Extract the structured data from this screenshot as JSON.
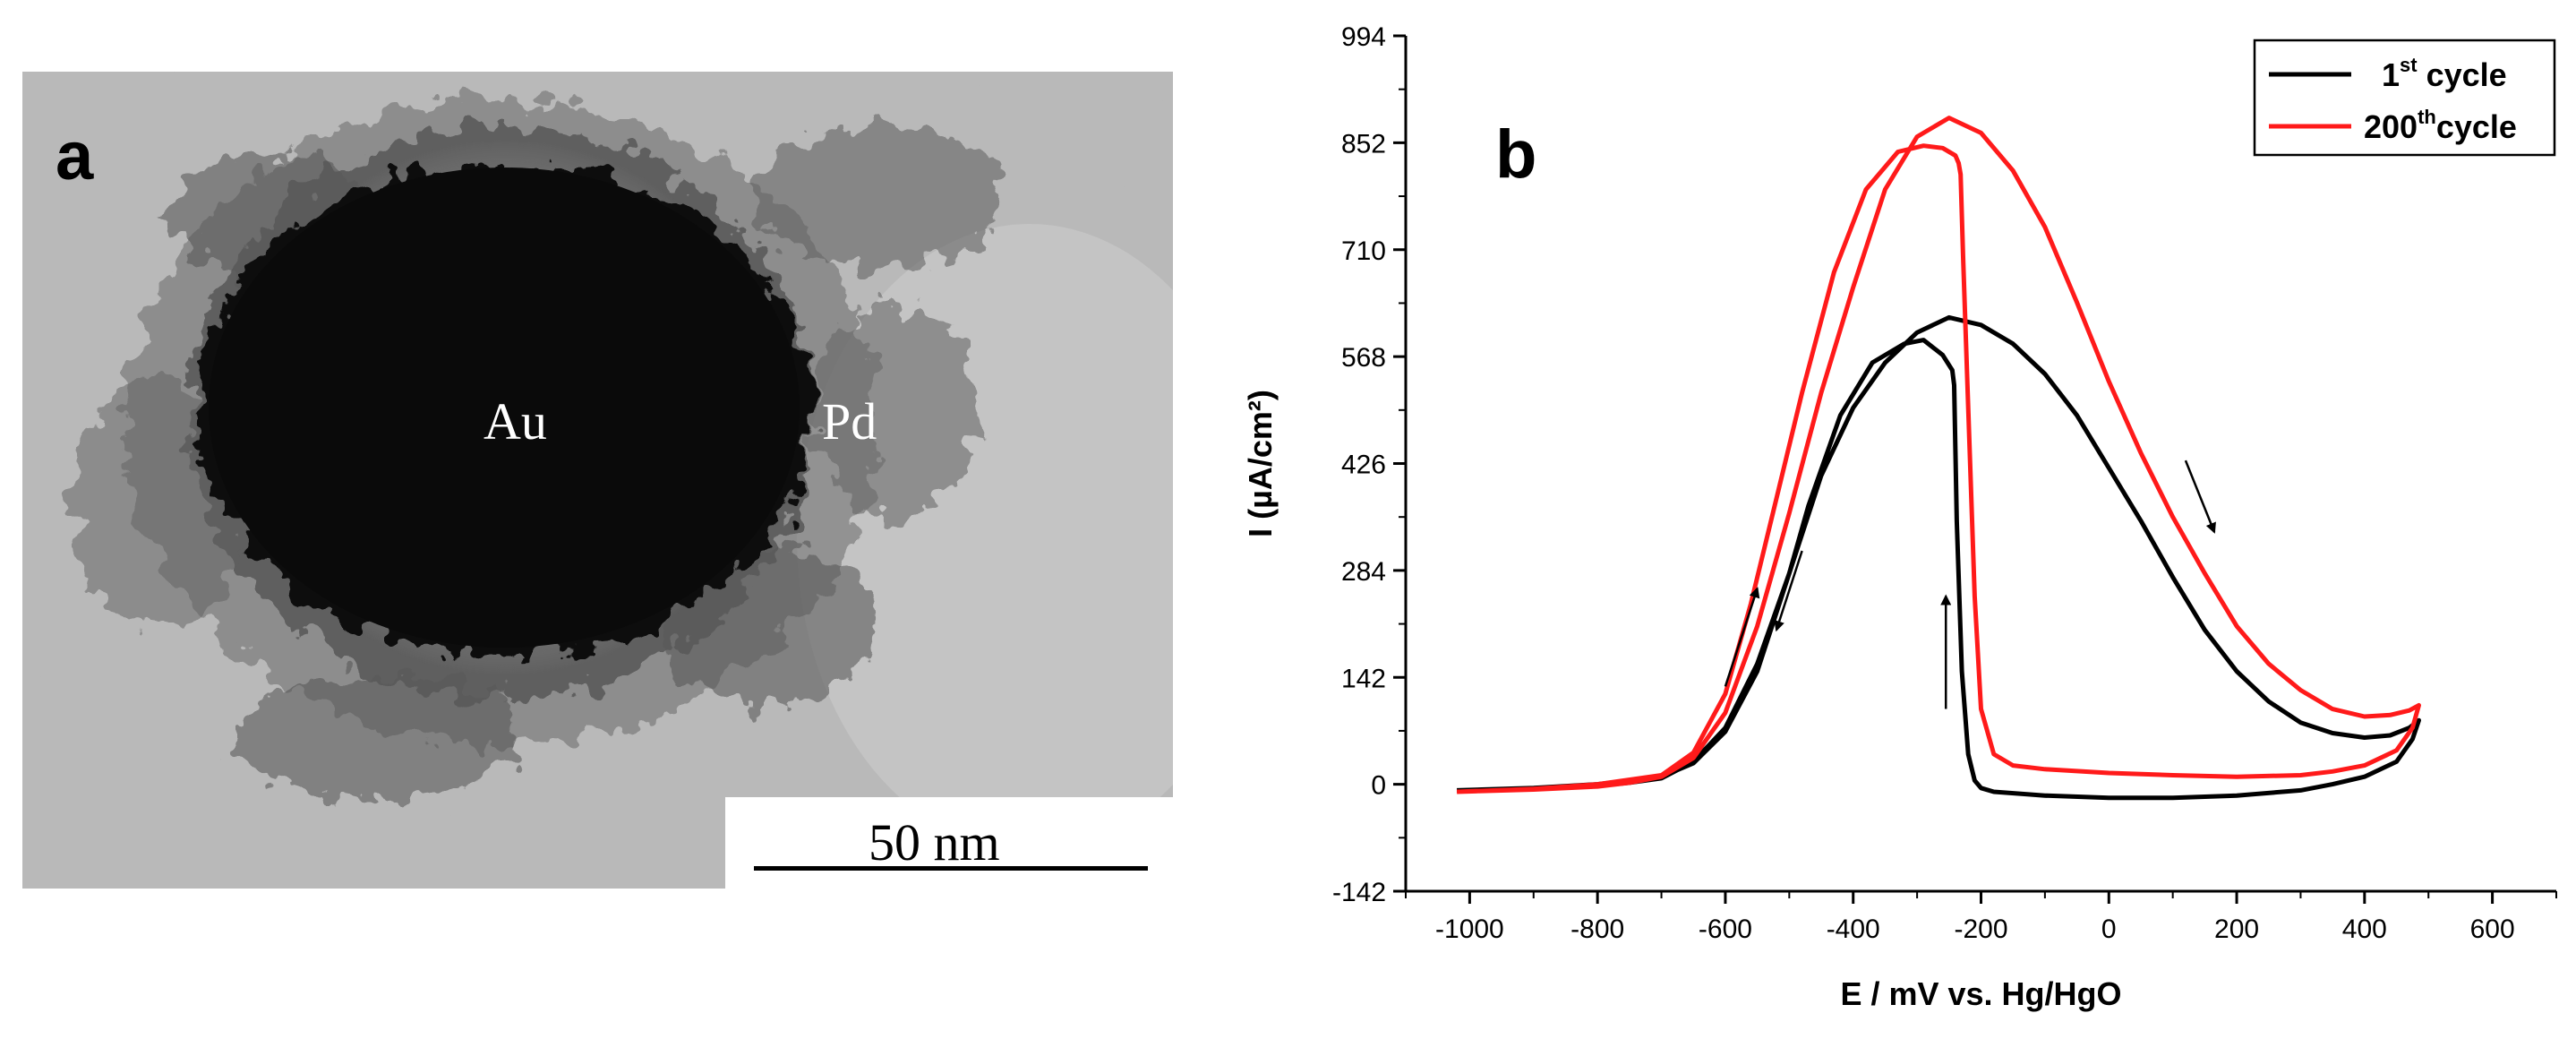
{
  "panel_a": {
    "letter": "a",
    "core_label": "Au",
    "shell_label": "Pd",
    "scale_bar_label": "50 nm"
  },
  "panel_b": {
    "letter": "b"
  },
  "colors": {
    "cycle1": "#000000",
    "cycle200": "#ff1a1a",
    "tem_background": "#b8b8b8",
    "tem_core": "#0a0a0a"
  },
  "chart_data": {
    "type": "line",
    "title": "",
    "xlabel": "E / mV vs. Hg/HgO",
    "ylabel": "I (µA/cm²)",
    "xlim": [
      -1100,
      700
    ],
    "ylim": [
      -142,
      994
    ],
    "xticks": [
      -1000,
      -800,
      -600,
      -400,
      -200,
      0,
      200,
      400,
      600
    ],
    "xtick_labels": [
      "-1000",
      "-800",
      "-600",
      "-400",
      "-200",
      "0",
      "200",
      "400",
      "600"
    ],
    "yticks": [
      -142,
      0,
      142,
      284,
      426,
      568,
      710,
      852,
      994
    ],
    "ytick_labels": [
      "-142",
      "0",
      "142",
      "284",
      "426",
      "568",
      "710",
      "852",
      "994"
    ],
    "legend": {
      "position": "top-right",
      "entries": [
        {
          "base": "1",
          "sup": "st",
          "rest": " cycle"
        },
        {
          "base": "200",
          "sup": "th",
          "rest": "cycle"
        }
      ]
    },
    "series": [
      {
        "name": "1st cycle",
        "color": "#000000",
        "forward": [
          [
            -1020,
            -8
          ],
          [
            -900,
            -5
          ],
          [
            -800,
            -2
          ],
          [
            -750,
            2
          ],
          [
            -700,
            8
          ],
          [
            -650,
            30
          ],
          [
            -600,
            75
          ],
          [
            -550,
            160
          ],
          [
            -500,
            280
          ],
          [
            -450,
            410
          ],
          [
            -400,
            500
          ],
          [
            -350,
            560
          ],
          [
            -300,
            600
          ],
          [
            -250,
            620
          ],
          [
            -200,
            610
          ],
          [
            -150,
            585
          ],
          [
            -100,
            545
          ],
          [
            -50,
            490
          ],
          [
            0,
            420
          ],
          [
            50,
            350
          ],
          [
            100,
            275
          ],
          [
            150,
            205
          ],
          [
            200,
            150
          ],
          [
            250,
            110
          ],
          [
            300,
            82
          ],
          [
            350,
            68
          ],
          [
            400,
            62
          ],
          [
            440,
            65
          ],
          [
            470,
            75
          ],
          [
            485,
            85
          ]
        ],
        "reverse": [
          [
            485,
            85
          ],
          [
            475,
            60
          ],
          [
            450,
            30
          ],
          [
            400,
            10
          ],
          [
            350,
            0
          ],
          [
            300,
            -8
          ],
          [
            200,
            -15
          ],
          [
            100,
            -18
          ],
          [
            0,
            -18
          ],
          [
            -100,
            -15
          ],
          [
            -180,
            -10
          ],
          [
            -200,
            -5
          ],
          [
            -210,
            5
          ],
          [
            -220,
            40
          ],
          [
            -230,
            150
          ],
          [
            -238,
            350
          ],
          [
            -242,
            530
          ],
          [
            -245,
            550
          ],
          [
            -260,
            570
          ],
          [
            -290,
            590
          ],
          [
            -320,
            585
          ],
          [
            -370,
            560
          ],
          [
            -420,
            490
          ],
          [
            -470,
            370
          ],
          [
            -500,
            280
          ],
          [
            -550,
            150
          ],
          [
            -600,
            70
          ],
          [
            -650,
            28
          ],
          [
            -700,
            10
          ],
          [
            -800,
            0
          ],
          [
            -900,
            -5
          ],
          [
            -1020,
            -8
          ]
        ]
      },
      {
        "name": "200th cycle",
        "color": "#ff1a1a",
        "forward": [
          [
            -1020,
            -10
          ],
          [
            -900,
            -7
          ],
          [
            -800,
            -3
          ],
          [
            -750,
            2
          ],
          [
            -700,
            10
          ],
          [
            -650,
            35
          ],
          [
            -600,
            95
          ],
          [
            -550,
            210
          ],
          [
            -500,
            360
          ],
          [
            -450,
            520
          ],
          [
            -400,
            660
          ],
          [
            -350,
            790
          ],
          [
            -300,
            860
          ],
          [
            -250,
            885
          ],
          [
            -200,
            865
          ],
          [
            -150,
            815
          ],
          [
            -100,
            740
          ],
          [
            -50,
            640
          ],
          [
            0,
            535
          ],
          [
            50,
            440
          ],
          [
            100,
            355
          ],
          [
            150,
            280
          ],
          [
            200,
            210
          ],
          [
            250,
            160
          ],
          [
            300,
            125
          ],
          [
            350,
            100
          ],
          [
            400,
            90
          ],
          [
            440,
            92
          ],
          [
            470,
            98
          ],
          [
            485,
            105
          ]
        ],
        "reverse": [
          [
            485,
            105
          ],
          [
            475,
            75
          ],
          [
            450,
            45
          ],
          [
            400,
            25
          ],
          [
            350,
            17
          ],
          [
            300,
            12
          ],
          [
            200,
            10
          ],
          [
            100,
            12
          ],
          [
            0,
            15
          ],
          [
            -100,
            20
          ],
          [
            -150,
            25
          ],
          [
            -180,
            40
          ],
          [
            -200,
            100
          ],
          [
            -210,
            250
          ],
          [
            -220,
            500
          ],
          [
            -228,
            700
          ],
          [
            -232,
            810
          ],
          [
            -235,
            825
          ],
          [
            -240,
            835
          ],
          [
            -260,
            845
          ],
          [
            -290,
            848
          ],
          [
            -330,
            840
          ],
          [
            -380,
            790
          ],
          [
            -430,
            680
          ],
          [
            -480,
            520
          ],
          [
            -520,
            380
          ],
          [
            -560,
            240
          ],
          [
            -600,
            120
          ],
          [
            -650,
            42
          ],
          [
            -700,
            12
          ],
          [
            -800,
            0
          ],
          [
            -900,
            -6
          ],
          [
            -1020,
            -10
          ]
        ]
      }
    ],
    "annotations": [
      {
        "type": "arrow",
        "from": [
          -600,
          130
        ],
        "to": [
          -550,
          260
        ]
      },
      {
        "type": "arrow",
        "from": [
          -480,
          310
        ],
        "to": [
          -520,
          205
        ]
      },
      {
        "type": "arrow",
        "from": [
          -255,
          100
        ],
        "to": [
          -255,
          250
        ]
      },
      {
        "type": "arrow",
        "from": [
          120,
          430
        ],
        "to": [
          165,
          335
        ]
      }
    ]
  }
}
